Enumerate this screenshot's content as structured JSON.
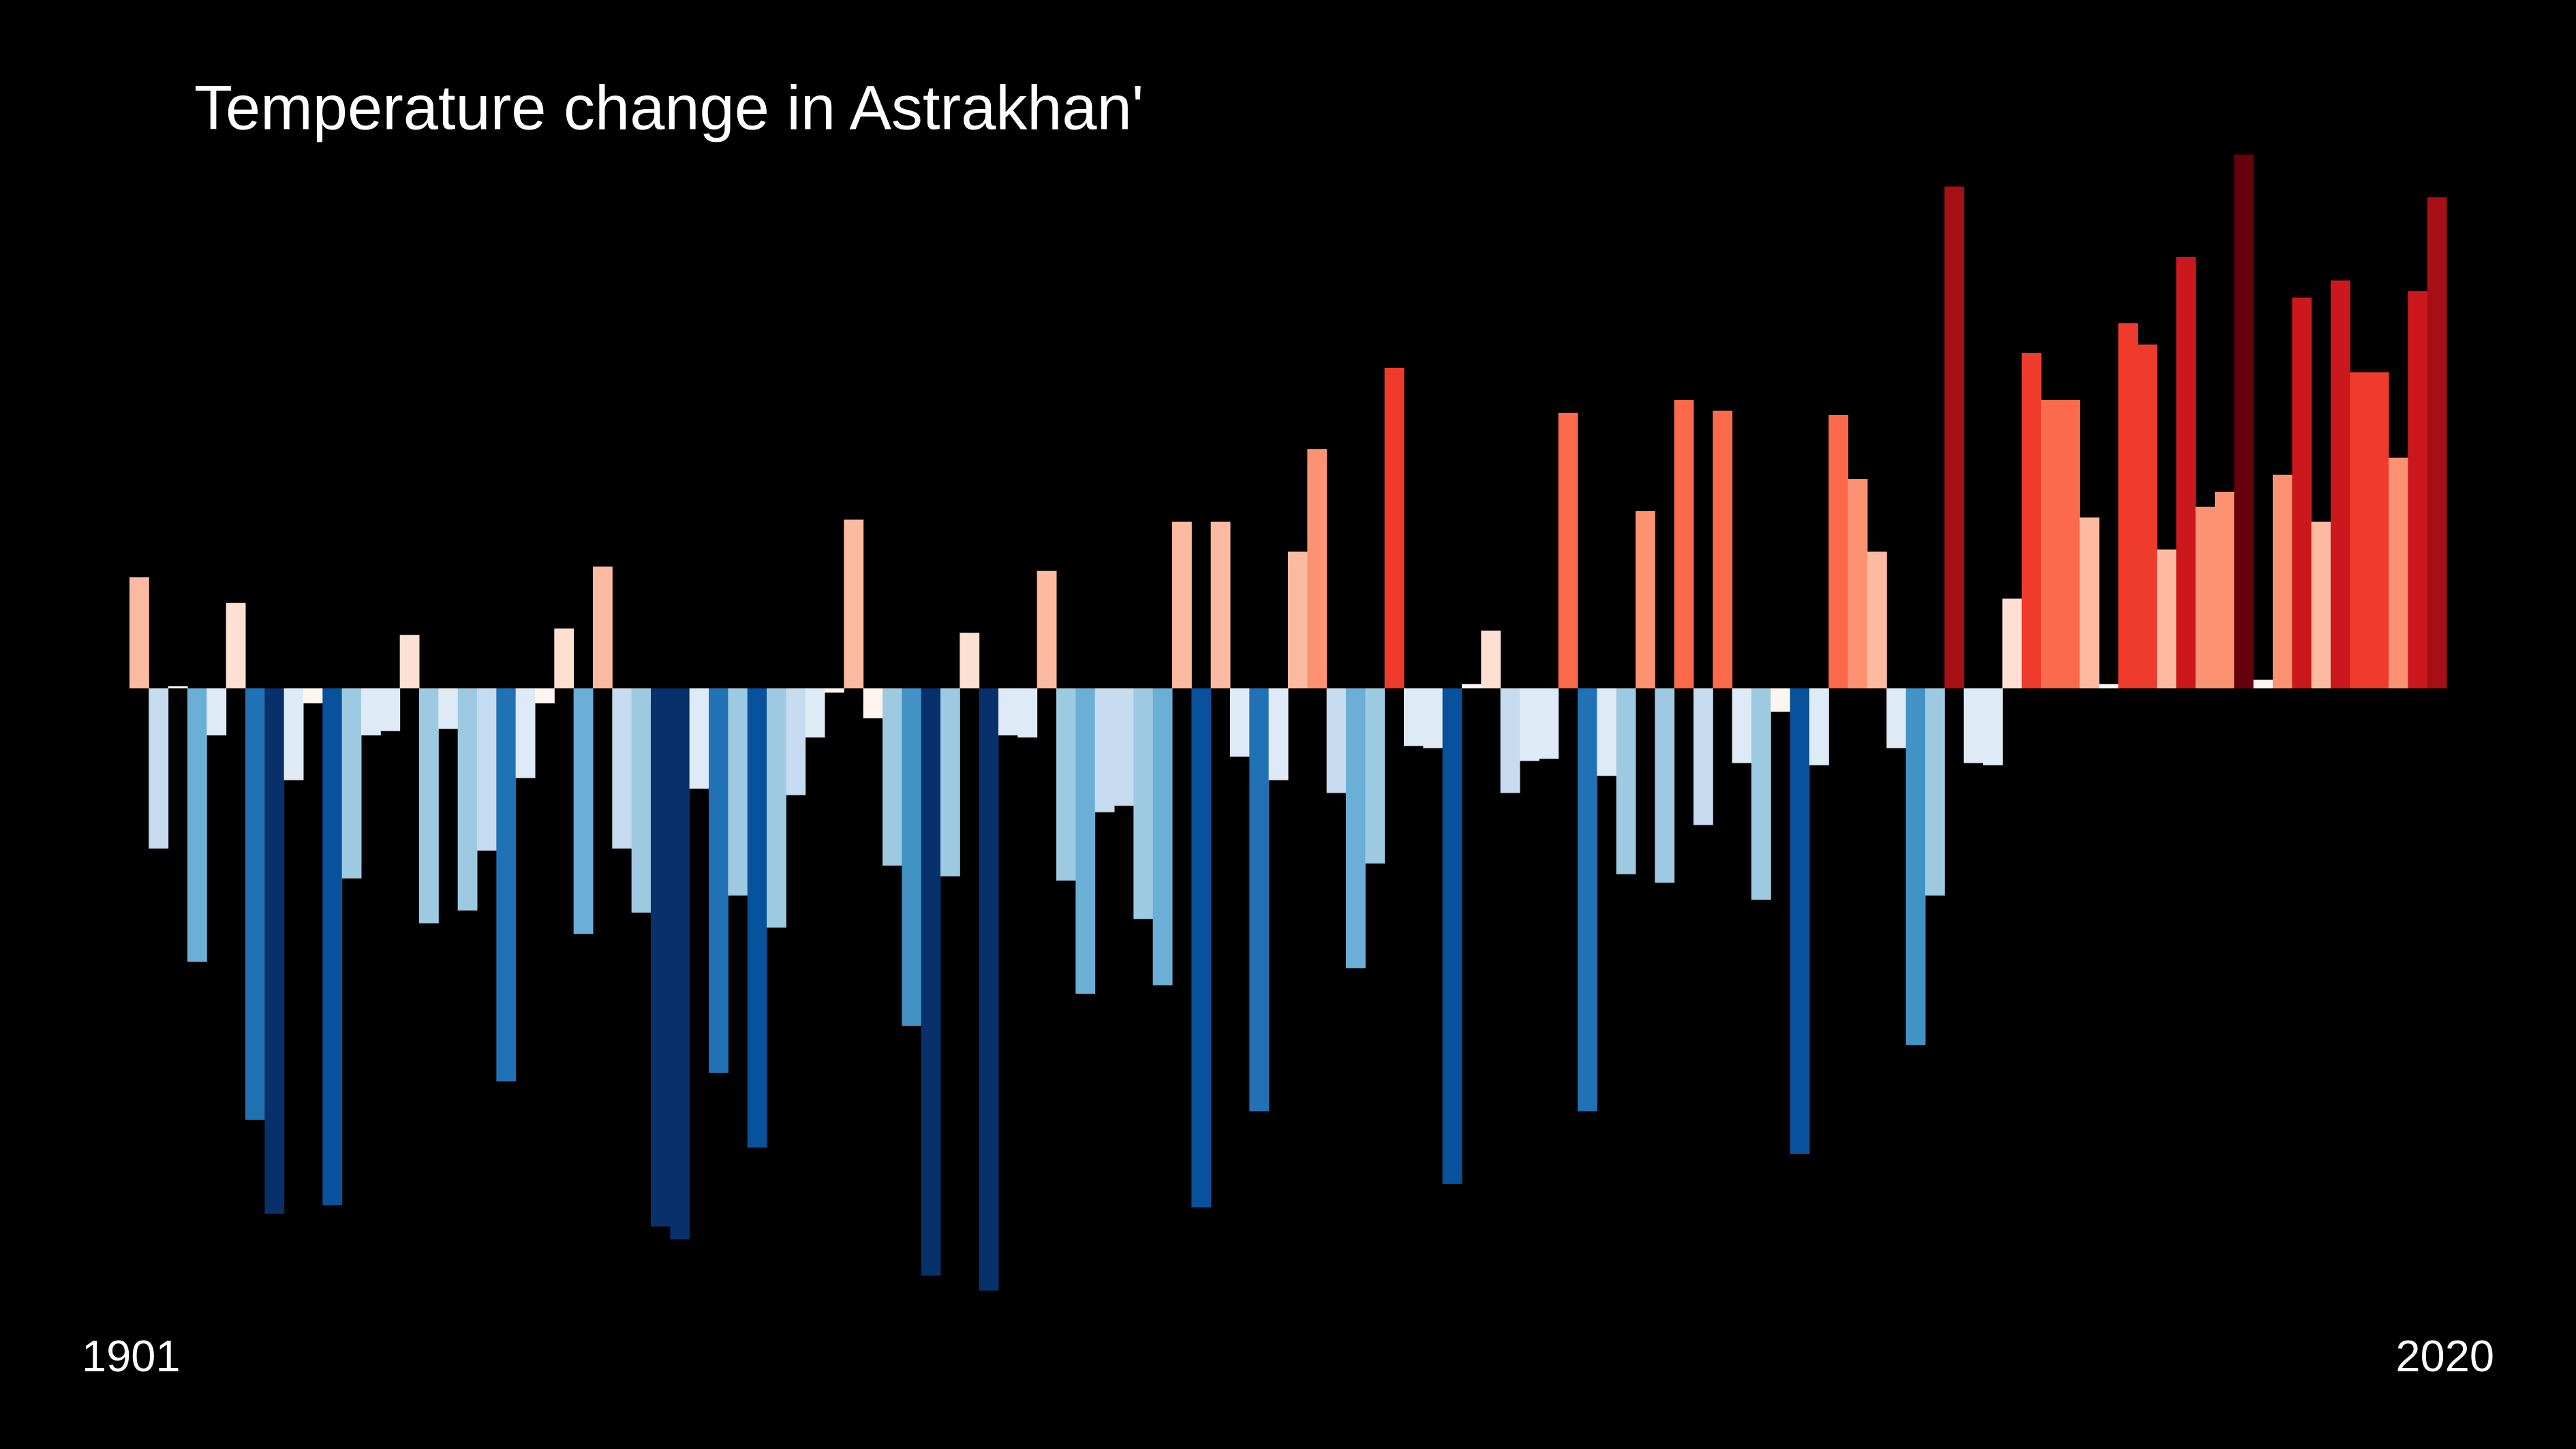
{
  "chart_data": {
    "type": "bar",
    "title": "Temperature change in Astrakhan'",
    "categories": [
      "1901",
      null,
      null,
      null,
      null,
      null,
      null,
      null,
      null,
      null,
      null,
      null,
      null,
      null,
      null,
      null,
      null,
      null,
      null,
      null,
      null,
      null,
      null,
      null,
      null,
      null,
      null,
      null,
      null,
      null,
      null,
      null,
      null,
      null,
      null,
      null,
      null,
      null,
      null,
      null,
      null,
      null,
      null,
      null,
      null,
      null,
      null,
      null,
      null,
      null,
      null,
      null,
      null,
      null,
      null,
      null,
      null,
      null,
      null,
      null,
      null,
      null,
      null,
      null,
      null,
      null,
      null,
      null,
      null,
      null,
      null,
      null,
      null,
      null,
      null,
      null,
      null,
      null,
      null,
      null,
      null,
      null,
      null,
      null,
      null,
      null,
      null,
      null,
      null,
      null,
      null,
      null,
      null,
      null,
      null,
      null,
      null,
      null,
      null,
      null,
      null,
      null,
      null,
      null,
      null,
      null,
      null,
      null,
      null,
      null,
      null,
      null,
      null,
      null,
      null,
      null,
      null,
      null,
      null,
      "2020"
    ],
    "values": [
      0.52,
      -0.75,
      0.01,
      -1.28,
      -0.22,
      0.4,
      -2.02,
      -2.46,
      -0.43,
      -0.07,
      -2.42,
      -0.89,
      -0.22,
      -0.2,
      0.25,
      -1.1,
      -0.19,
      -1.04,
      -0.76,
      -1.84,
      -0.42,
      -0.07,
      0.28,
      -1.15,
      0.57,
      -0.75,
      -1.05,
      -2.52,
      -2.58,
      -0.47,
      -1.8,
      -0.97,
      -2.15,
      -1.12,
      -0.5,
      -0.23,
      -0.02,
      0.79,
      -0.14,
      -0.83,
      -1.58,
      -2.75,
      -0.88,
      0.26,
      -2.82,
      -0.22,
      -0.23,
      0.55,
      -0.9,
      -1.43,
      -0.58,
      -0.55,
      -1.08,
      -1.39,
      0.78,
      -2.43,
      0.78,
      -0.32,
      -1.98,
      -0.43,
      0.64,
      1.12,
      -0.49,
      -1.31,
      -0.82,
      1.5,
      -0.27,
      -0.28,
      -2.32,
      0.02,
      0.27,
      -0.49,
      -0.34,
      -0.33,
      1.29,
      -1.98,
      -0.41,
      -0.87,
      0.83,
      -0.91,
      1.35,
      -0.64,
      1.3,
      -0.35,
      -0.99,
      -0.11,
      -2.18,
      -0.36,
      1.28,
      0.98,
      0.64,
      -0.28,
      -1.67,
      -0.97,
      2.35,
      -0.35,
      -0.36,
      0.42,
      1.57,
      1.35,
      1.35,
      0.8,
      0.02,
      1.71,
      1.61,
      0.65,
      2.02,
      0.85,
      0.92,
      2.5,
      0.04,
      1.0,
      1.83,
      0.78,
      1.91,
      1.48,
      1.48,
      1.08,
      1.86,
      2.3
    ],
    "ylim": [
      -3,
      3
    ],
    "colormap": [
      "#08306b",
      "#08519c",
      "#2171b5",
      "#4292c6",
      "#6baed6",
      "#9ecae1",
      "#c6dbef",
      "#deebf7",
      "#fff5f0",
      "#fee0d2",
      "#fcbba1",
      "#fc9272",
      "#fb6a4a",
      "#ef3b2c",
      "#cb181d",
      "#a50f15",
      "#67000d"
    ],
    "color_range": [
      -2.6,
      2.6
    ]
  }
}
